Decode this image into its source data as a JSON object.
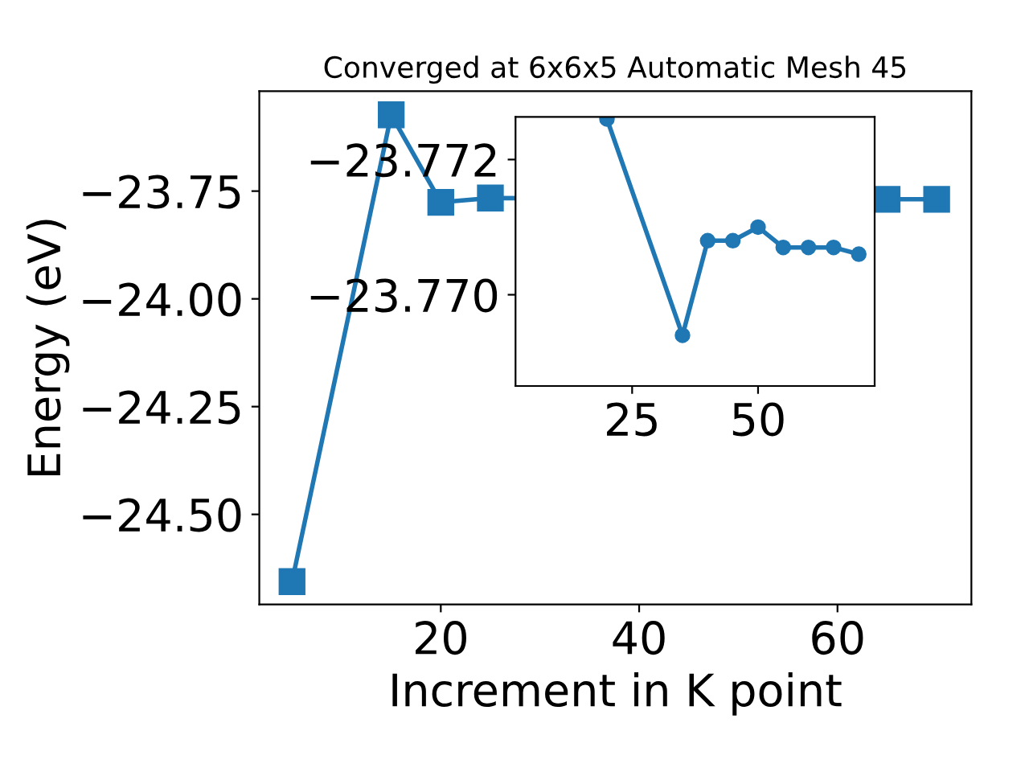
{
  "chart_data": [
    {
      "type": "line",
      "title": "Converged at 6x6x5 Automatic Mesh 45",
      "xlabel": "Increment in K point",
      "ylabel": "Energy (eV)",
      "marker": "square",
      "grid": false,
      "legend": false,
      "x": [
        5,
        15,
        20,
        25,
        65,
        70
      ],
      "series": [
        {
          "color": "#1f77b4",
          "values": [
            -24.656,
            -23.573,
            -23.776,
            -23.766,
            -23.769,
            -23.769
          ]
        }
      ],
      "xlim": [
        1.7,
        73.5
      ],
      "xticks": [
        20,
        40,
        60
      ],
      "ylim": [
        -24.709,
        -23.518
      ],
      "yticks": [
        {
          "value": -24.5,
          "label": "−24.50"
        },
        {
          "value": -24.25,
          "label": "−24.25"
        },
        {
          "value": -24.0,
          "label": "−24.00"
        },
        {
          "value": -23.75,
          "label": "−23.75"
        }
      ]
    },
    {
      "type": "line",
      "marker": "circle",
      "grid": false,
      "legend": false,
      "x": [
        20,
        35,
        40,
        45,
        50,
        55,
        60,
        65,
        70
      ],
      "series": [
        {
          "color": "#1f77b4",
          "values": [
            -23.7726,
            -23.7694,
            -23.7708,
            -23.7708,
            -23.771,
            -23.7707,
            -23.7707,
            -23.7707,
            -23.7706
          ]
        }
      ],
      "xlim": [
        1.85,
        73.15
      ],
      "xticks": [
        25,
        50
      ],
      "ylim": [
        -23.76865,
        -23.77263
      ],
      "yticks": [
        {
          "value": -23.772,
          "label": "−23.772"
        },
        {
          "value": -23.77,
          "label": "−23.770"
        }
      ]
    }
  ]
}
